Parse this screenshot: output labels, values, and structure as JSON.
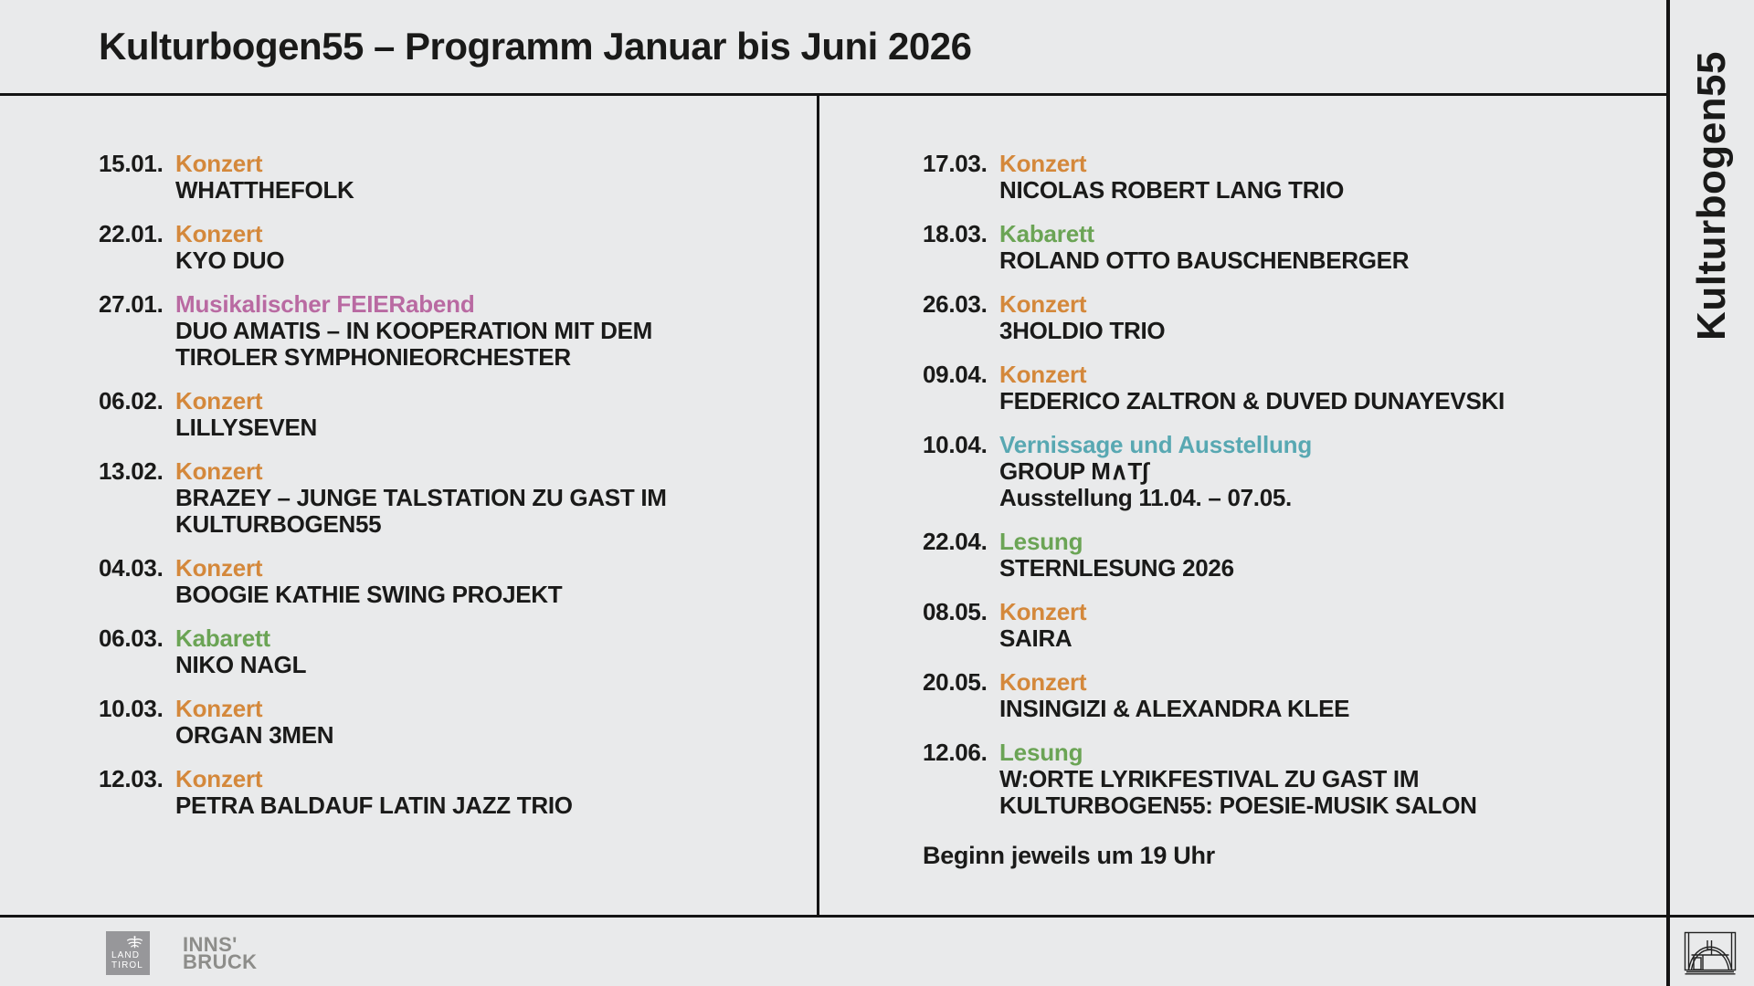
{
  "header": {
    "title": "Kulturbogen55 – Programm Januar bis Juni 2026"
  },
  "sidebar": {
    "vertical_title": "Kulturbogen55"
  },
  "category_colors": {
    "Konzert": "#d4883b",
    "Kabarett": "#6ba455",
    "Lesung": "#6ba455",
    "Musikalischer FEIERabend": "#b96aa2",
    "Vernissage und Ausstellung": "#58a8b2"
  },
  "colors": {
    "background": "#e9eaeb",
    "rule": "#141414",
    "text": "#1a1a19",
    "logo_square_gray": "#97979a",
    "logo_text_gray": "#8d8d8a"
  },
  "program": {
    "columns": [
      {
        "items": [
          {
            "date": "15.01.",
            "category": "Konzert",
            "lines": [
              "WHATTHEFOLK"
            ]
          },
          {
            "date": "22.01.",
            "category": "Konzert",
            "lines": [
              "KYO DUO"
            ]
          },
          {
            "date": "27.01.",
            "category": "Musikalischer FEIERabend",
            "lines": [
              "DUO AMATIS – IN KOOPERATION MIT DEM",
              "TIROLER SYMPHONIEORCHESTER"
            ]
          },
          {
            "date": "06.02.",
            "category": "Konzert",
            "lines": [
              "LILLYSEVEN"
            ]
          },
          {
            "date": "13.02.",
            "category": "Konzert",
            "lines": [
              "BRAZEY – JUNGE TALSTATION ZU GAST IM",
              "KULTURBOGEN55"
            ]
          },
          {
            "date": "04.03.",
            "category": "Konzert",
            "lines": [
              "BOOGIE KATHIE SWING PROJEKT"
            ]
          },
          {
            "date": "06.03.",
            "category": "Kabarett",
            "lines": [
              "NIKO NAGL"
            ]
          },
          {
            "date": "10.03.",
            "category": "Konzert",
            "lines": [
              "ORGAN 3MEN"
            ]
          },
          {
            "date": "12.03.",
            "category": "Konzert",
            "lines": [
              "PETRA BALDAUF LATIN JAZZ TRIO"
            ]
          }
        ]
      },
      {
        "items": [
          {
            "date": "17.03.",
            "category": "Konzert",
            "lines": [
              "NICOLAS ROBERT LANG TRIO"
            ]
          },
          {
            "date": "18.03.",
            "category": "Kabarett",
            "lines": [
              "ROLAND OTTO BAUSCHENBERGER"
            ]
          },
          {
            "date": "26.03.",
            "category": "Konzert",
            "lines": [
              "3HOLDIO TRIO"
            ]
          },
          {
            "date": "09.04.",
            "category": "Konzert",
            "lines": [
              "FEDERICO ZALTRON & DUVED DUNAYEVSKI"
            ]
          },
          {
            "date": "10.04.",
            "category": "Vernissage und Ausstellung",
            "lines": [
              "GROUP M∧T∫"
            ],
            "note": "Ausstellung 11.04. – 07.05."
          },
          {
            "date": "22.04.",
            "category": "Lesung",
            "lines": [
              "STERNLESUNG 2026"
            ]
          },
          {
            "date": "08.05.",
            "category": "Konzert",
            "lines": [
              "SAIRA"
            ]
          },
          {
            "date": "20.05.",
            "category": "Konzert",
            "lines": [
              "INSINGIZI & ALEXANDRA KLEE"
            ]
          },
          {
            "date": "12.06.",
            "category": "Lesung",
            "lines": [
              "W:ORTE LYRIKFESTIVAL ZU GAST IM",
              "KULTURBOGEN55: POESIE-MUSIK SALON"
            ]
          }
        ]
      }
    ],
    "footer_note": "Beginn jeweils um 19 Uhr"
  },
  "footer": {
    "land_tirol": {
      "lines": [
        "LAND",
        "TIROL"
      ]
    },
    "innsbruck": {
      "lines": [
        "INNS'",
        "BRUCK"
      ]
    }
  }
}
